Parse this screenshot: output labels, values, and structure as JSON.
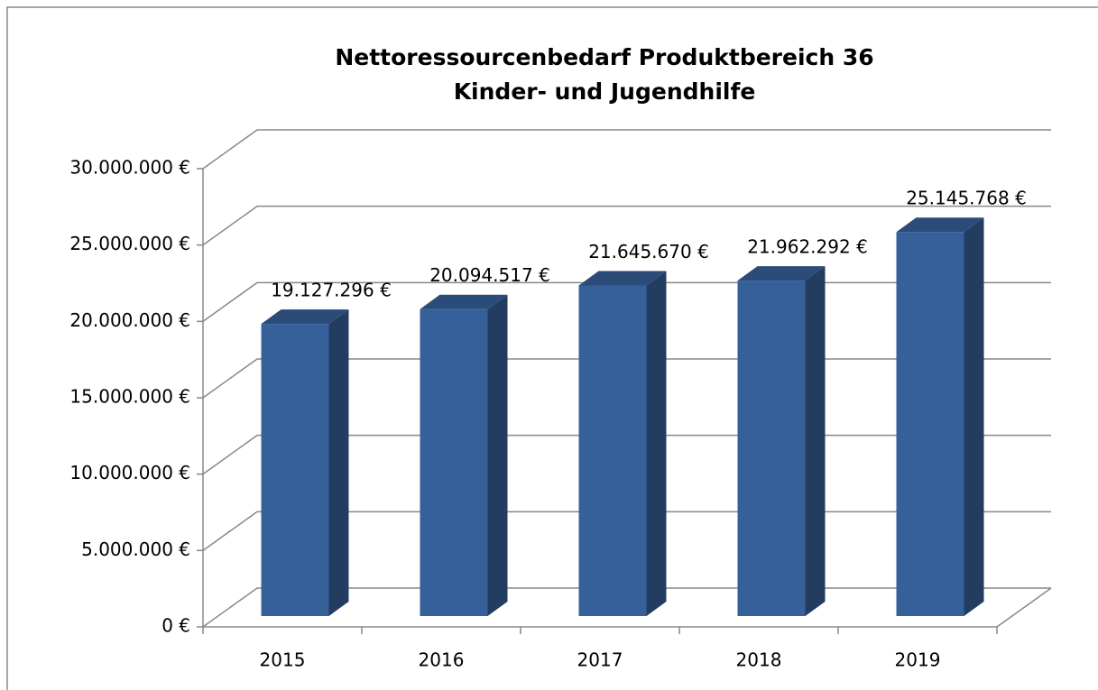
{
  "chart_data": {
    "type": "bar3d",
    "title": "Nettoressourcenbedarf Produktbereich 36",
    "subtitle": "Kinder- und Jugendhilfe",
    "categories": [
      "2015",
      "2016",
      "2017",
      "2018",
      "2019"
    ],
    "values": [
      19127296,
      20094517,
      21645670,
      21962292,
      25145768
    ],
    "value_labels": [
      "19.127.296 €",
      "20.094.517 €",
      "21.645.670 €",
      "21.962.292 €",
      "25.145.768 €"
    ],
    "color": "#36609a",
    "ylim": [
      0,
      30000000
    ],
    "yticks": [
      {
        "value": 0,
        "label": "0 €"
      },
      {
        "value": 5000000,
        "label": "5.000.000 €"
      },
      {
        "value": 10000000,
        "label": "10.000.000 €"
      },
      {
        "value": 15000000,
        "label": "15.000.000 €"
      },
      {
        "value": 20000000,
        "label": "20.000.000 €"
      },
      {
        "value": 25000000,
        "label": "25.000.000 €"
      },
      {
        "value": 30000000,
        "label": "30.000.000 €"
      }
    ],
    "grid": true
  }
}
